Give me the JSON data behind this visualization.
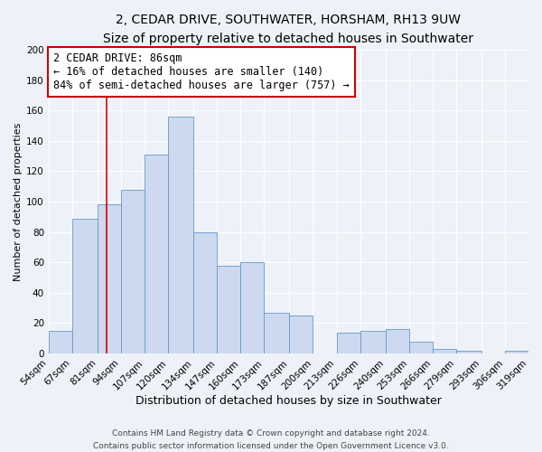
{
  "title": "2, CEDAR DRIVE, SOUTHWATER, HORSHAM, RH13 9UW",
  "subtitle": "Size of property relative to detached houses in Southwater",
  "xlabel": "Distribution of detached houses by size in Southwater",
  "ylabel": "Number of detached properties",
  "bin_labels": [
    "54sqm",
    "67sqm",
    "81sqm",
    "94sqm",
    "107sqm",
    "120sqm",
    "134sqm",
    "147sqm",
    "160sqm",
    "173sqm",
    "187sqm",
    "200sqm",
    "213sqm",
    "226sqm",
    "240sqm",
    "253sqm",
    "266sqm",
    "279sqm",
    "293sqm",
    "306sqm",
    "319sqm"
  ],
  "bar_heights": [
    15,
    89,
    98,
    108,
    131,
    156,
    80,
    58,
    60,
    27,
    25,
    0,
    14,
    15,
    16,
    8,
    3,
    2,
    0,
    2
  ],
  "bin_edges": [
    54,
    67,
    81,
    94,
    107,
    120,
    134,
    147,
    160,
    173,
    187,
    200,
    213,
    226,
    240,
    253,
    266,
    279,
    293,
    306,
    319
  ],
  "bar_color": "#ccd9ee",
  "bar_edge_color": "#6699cc",
  "vline_x": 86,
  "vline_color": "#dd0000",
  "annotation_text": "2 CEDAR DRIVE: 86sqm\n← 16% of detached houses are smaller (140)\n84% of semi-detached houses are larger (757) →",
  "annotation_box_color": "#ffffff",
  "annotation_box_edge_color": "#cc0000",
  "ylim": [
    0,
    200
  ],
  "yticks": [
    0,
    20,
    40,
    60,
    80,
    100,
    120,
    140,
    160,
    180,
    200
  ],
  "background_color": "#eef2f8",
  "grid_color": "#ffffff",
  "footer_line1": "Contains HM Land Registry data © Crown copyright and database right 2024.",
  "footer_line2": "Contains public sector information licensed under the Open Government Licence v3.0.",
  "title_fontsize": 10,
  "xlabel_fontsize": 9,
  "ylabel_fontsize": 8,
  "tick_fontsize": 7.5,
  "annotation_fontsize": 8.5,
  "footer_fontsize": 6.5
}
